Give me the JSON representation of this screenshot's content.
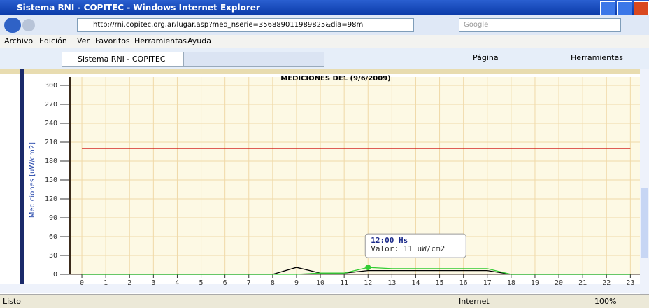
{
  "window": {
    "title": "Sistema RNI - COPITEC - Windows Internet Explorer",
    "address": "http://rni.copitec.org.ar/lugar.asp?med_nserie=356889011989825&dia=98m",
    "search": "Google",
    "menu": [
      "Archivo",
      "Edición",
      "Ver",
      "Favoritos",
      "Herramientas",
      "Ayuda"
    ],
    "tab": "Sistema RNI - COPITEC",
    "toolbar": [
      "Página",
      "Herramientas"
    ],
    "status": "Listo",
    "zone": "Internet",
    "zoom": "100%"
  },
  "chart_data": {
    "type": "line",
    "title": "MEDICIONES DEL (9/6/2009)",
    "y_label": "Mediciones [uW/cm2]",
    "x": [
      0,
      1,
      2,
      3,
      4,
      5,
      6,
      7,
      8,
      9,
      10,
      11,
      12,
      13,
      14,
      15,
      16,
      17,
      18,
      19,
      20,
      21,
      22,
      23
    ],
    "series": [
      {
        "color": "#cc0000",
        "values": [
          200,
          200,
          200,
          200,
          200,
          200,
          200,
          200,
          200,
          200,
          200,
          200,
          200,
          200,
          200,
          200,
          200,
          200,
          200,
          200,
          200,
          200,
          200,
          200
        ]
      },
      {
        "color": "#000000",
        "values": [
          0,
          0,
          0,
          0,
          0,
          0,
          0,
          0,
          0,
          11,
          2,
          2,
          6,
          6,
          6,
          6,
          6,
          6,
          0,
          0,
          0,
          0,
          0,
          0
        ]
      },
      {
        "color": "#33cc33",
        "values": [
          0,
          0,
          0,
          0,
          0,
          0,
          0,
          0,
          0,
          0,
          2,
          2,
          11,
          9,
          9,
          9,
          9,
          9,
          0,
          0,
          0,
          0,
          0,
          0
        ]
      }
    ],
    "xlim": [
      -0.5,
      23.4
    ],
    "xticks": [
      0,
      1,
      2,
      3,
      4,
      5,
      6,
      7,
      8,
      9,
      10,
      11,
      12,
      13,
      14,
      15,
      16,
      17,
      18,
      19,
      20,
      21,
      22,
      23
    ],
    "ylim": [
      0,
      300
    ],
    "yticks": [
      0,
      30,
      60,
      90,
      120,
      150,
      180,
      210,
      240,
      270,
      300
    ],
    "grid": true,
    "tooltip": {
      "x_label": "12:00 Hs",
      "value_label": "Valor: 11 uW/cm2"
    }
  }
}
